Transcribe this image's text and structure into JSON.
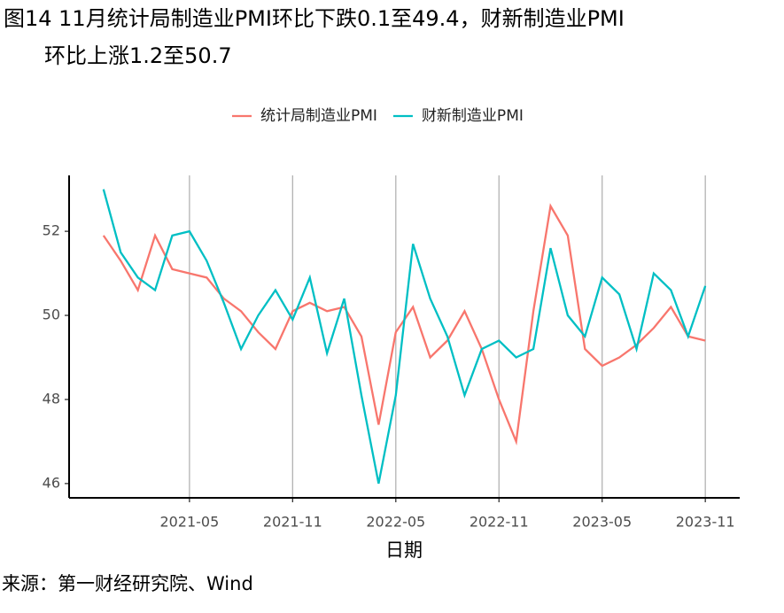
{
  "chart_data": {
    "type": "line",
    "title": [
      "图14 11月统计局制造业PMI环比下跌0.1至49.4，财新制造业PMI",
      "环比上涨1.2至50.7"
    ],
    "x_label": "日期",
    "source": "来源：第一财经研究院、Wind",
    "x": [
      "2020-12",
      "2021-01",
      "2021-02",
      "2021-03",
      "2021-04",
      "2021-05",
      "2021-06",
      "2021-07",
      "2021-08",
      "2021-09",
      "2021-10",
      "2021-11",
      "2021-12",
      "2022-01",
      "2022-02",
      "2022-03",
      "2022-04",
      "2022-05",
      "2022-06",
      "2022-07",
      "2022-08",
      "2022-09",
      "2022-10",
      "2022-11",
      "2022-12",
      "2023-01",
      "2023-02",
      "2023-03",
      "2023-04",
      "2023-05",
      "2023-06",
      "2023-07",
      "2023-08",
      "2023-09",
      "2023-10",
      "2023-11"
    ],
    "series": [
      {
        "name": "统计局制造业PMI",
        "color": "#F8766D",
        "values": [
          51.9,
          51.3,
          50.6,
          51.9,
          51.1,
          51.0,
          50.9,
          50.4,
          50.1,
          49.6,
          49.2,
          50.1,
          50.3,
          50.1,
          50.2,
          49.5,
          47.4,
          49.6,
          50.2,
          49.0,
          49.4,
          50.1,
          49.2,
          48.0,
          47.0,
          50.1,
          52.6,
          51.9,
          49.2,
          48.8,
          49.0,
          49.3,
          49.7,
          50.2,
          49.5,
          49.4
        ]
      },
      {
        "name": "财新制造业PMI",
        "color": "#00BFC4",
        "values": [
          53.0,
          51.5,
          50.9,
          50.6,
          51.9,
          52.0,
          51.3,
          50.3,
          49.2,
          50.0,
          50.6,
          49.9,
          50.9,
          49.1,
          50.4,
          48.1,
          46.0,
          48.1,
          51.7,
          50.4,
          49.5,
          48.1,
          49.2,
          49.4,
          49.0,
          49.2,
          51.6,
          50.0,
          49.5,
          50.9,
          50.5,
          49.2,
          51.0,
          50.6,
          49.5,
          50.7
        ]
      }
    ],
    "xlim": [
      "2020-10",
      "2024-01"
    ],
    "xticks": [
      "2021-05",
      "2021-11",
      "2022-05",
      "2022-11",
      "2023-05",
      "2023-11"
    ],
    "ylim": [
      45.66,
      53.33
    ],
    "yticks": [
      46,
      48,
      50,
      52
    ],
    "x_grid": true,
    "legend": "top"
  }
}
